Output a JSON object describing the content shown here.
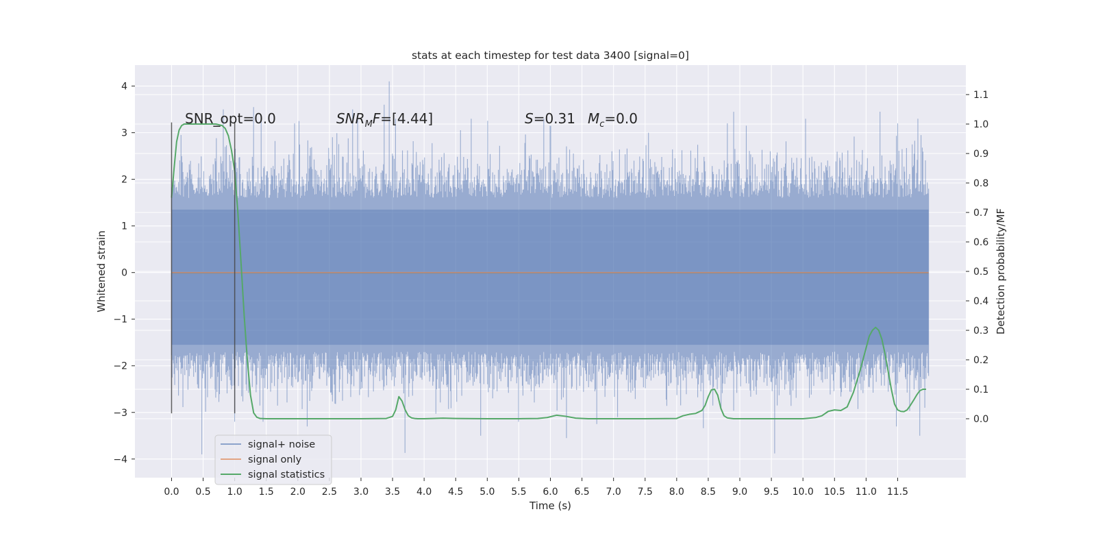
{
  "chart_data": {
    "type": "line",
    "title": "stats at each timestep for test data 3400 [signal=0]",
    "xlabel": "Time (s)",
    "ylabel": "Whitened strain",
    "ylabel_right": "Detection probability/MF",
    "xlim": [
      -0.58,
      12.58
    ],
    "ylim": [
      -4.4,
      4.45
    ],
    "ylim_right": [
      -0.2,
      1.2
    ],
    "x_ticks": [
      "0.0",
      "0.5",
      "1.0",
      "1.5",
      "2.0",
      "2.5",
      "3.0",
      "3.5",
      "4.0",
      "4.5",
      "5.0",
      "5.5",
      "6.0",
      "6.5",
      "7.0",
      "7.5",
      "8.0",
      "8.5",
      "9.0",
      "9.5",
      "10.0",
      "10.5",
      "11.0",
      "11.5"
    ],
    "y_ticks": [
      "4",
      "3",
      "2",
      "1",
      "0",
      "−1",
      "−2",
      "−3",
      "−4"
    ],
    "y_ticks_right": [
      "1.1",
      "1.0",
      "0.9",
      "0.8",
      "0.7",
      "0.6",
      "0.5",
      "0.4",
      "0.3",
      "0.2",
      "0.1",
      "0.0"
    ],
    "annotations": {
      "snr_opt": "SNR_opt=0.0",
      "snr_mf_italic": "SNR",
      "snr_mf_sub": "M",
      "snr_mf_rest": "F=[4.44]",
      "s_italic": "S",
      "s_rest": "=0.31",
      "mc_italic": "M",
      "mc_sub": "c",
      "mc_rest": "=0.0"
    },
    "vlines": [
      0.0,
      1.0
    ],
    "vline_range": [
      -3.02,
      3.22
    ],
    "grid": true,
    "legend_position": "lower-left",
    "series": [
      {
        "name": "signal+ noise",
        "axis": "left",
        "color": "#4c72b0",
        "t_start": 0.0,
        "t_end": 11.99,
        "band": [
          -1.7,
          1.65
        ],
        "extent": [
          -3.9,
          4.1
        ],
        "peak_outliers": [
          [
            0.15,
            2.95
          ],
          [
            0.82,
            3.5
          ],
          [
            1.3,
            3.55
          ],
          [
            1.42,
            3.3
          ],
          [
            1.95,
            3.2
          ],
          [
            2.02,
            3.25
          ],
          [
            2.87,
            3.5
          ],
          [
            2.95,
            3.3
          ],
          [
            3.37,
            3.6
          ],
          [
            3.45,
            4.1
          ],
          [
            3.55,
            3.3
          ],
          [
            4.75,
            3.3
          ],
          [
            5.9,
            3.3
          ],
          [
            6.0,
            3.15
          ],
          [
            7.55,
            3.0
          ],
          [
            8.8,
            3.2
          ],
          [
            9.1,
            3.15
          ],
          [
            10.04,
            3.3
          ],
          [
            11.22,
            3.45
          ],
          [
            11.5,
            3.2
          ],
          [
            11.82,
            3.3
          ]
        ],
        "trough_outliers": [
          [
            0.48,
            -3.9
          ],
          [
            1.0,
            -3.2
          ],
          [
            1.45,
            -3.2
          ],
          [
            2.15,
            -3.3
          ],
          [
            3.7,
            -3.87
          ],
          [
            4.9,
            -3.5
          ],
          [
            5.5,
            -3.2
          ],
          [
            6.25,
            -3.55
          ],
          [
            6.73,
            -3.25
          ],
          [
            9.55,
            -3.88
          ],
          [
            11.85,
            -3.5
          ]
        ]
      },
      {
        "name": "signal only",
        "axis": "left",
        "color": "#dd8452",
        "x": [
          0.0,
          11.99
        ],
        "y": [
          0.0,
          0.0
        ]
      },
      {
        "name": "signal statistics",
        "axis": "right",
        "color": "#55a868",
        "x": [
          0.0,
          0.04,
          0.08,
          0.12,
          0.16,
          0.2,
          0.3,
          0.4,
          0.5,
          0.6,
          0.7,
          0.8,
          0.85,
          0.9,
          0.95,
          1.0,
          1.05,
          1.1,
          1.15,
          1.2,
          1.25,
          1.3,
          1.35,
          1.4,
          1.5,
          2.0,
          2.5,
          3.0,
          3.4,
          3.5,
          3.55,
          3.6,
          3.65,
          3.7,
          3.75,
          3.8,
          3.85,
          3.9,
          4.0,
          4.3,
          4.5,
          5.0,
          5.5,
          5.8,
          5.95,
          6.1,
          6.25,
          6.4,
          6.6,
          7.0,
          7.5,
          8.0,
          8.1,
          8.2,
          8.3,
          8.4,
          8.45,
          8.5,
          8.55,
          8.6,
          8.65,
          8.7,
          8.75,
          8.8,
          8.9,
          9.0,
          9.5,
          10.0,
          10.2,
          10.3,
          10.4,
          10.5,
          10.6,
          10.7,
          10.8,
          10.9,
          11.0,
          11.05,
          11.1,
          11.15,
          11.2,
          11.25,
          11.3,
          11.35,
          11.4,
          11.45,
          11.5,
          11.55,
          11.6,
          11.65,
          11.7,
          11.75,
          11.8,
          11.85,
          11.9,
          11.95
        ],
        "y": [
          0.75,
          0.85,
          0.94,
          0.98,
          0.995,
          1.0,
          1.0,
          1.0,
          1.0,
          1.0,
          1.0,
          0.995,
          0.985,
          0.96,
          0.91,
          0.84,
          0.7,
          0.53,
          0.35,
          0.2,
          0.08,
          0.02,
          0.005,
          0.001,
          0.0,
          0.0,
          0.0,
          0.0,
          0.001,
          0.008,
          0.03,
          0.075,
          0.06,
          0.03,
          0.01,
          0.003,
          0.001,
          0.0,
          0.0,
          0.002,
          0.001,
          0.0,
          0.0,
          0.001,
          0.004,
          0.012,
          0.008,
          0.002,
          0.0,
          0.0,
          0.0,
          0.001,
          0.01,
          0.015,
          0.018,
          0.028,
          0.045,
          0.075,
          0.098,
          0.1,
          0.08,
          0.035,
          0.01,
          0.003,
          0.0,
          0.0,
          0.0,
          0.0,
          0.004,
          0.01,
          0.025,
          0.03,
          0.028,
          0.04,
          0.09,
          0.16,
          0.24,
          0.28,
          0.3,
          0.31,
          0.3,
          0.27,
          0.22,
          0.16,
          0.1,
          0.05,
          0.03,
          0.025,
          0.024,
          0.03,
          0.045,
          0.062,
          0.08,
          0.095,
          0.1,
          0.1
        ]
      }
    ]
  }
}
